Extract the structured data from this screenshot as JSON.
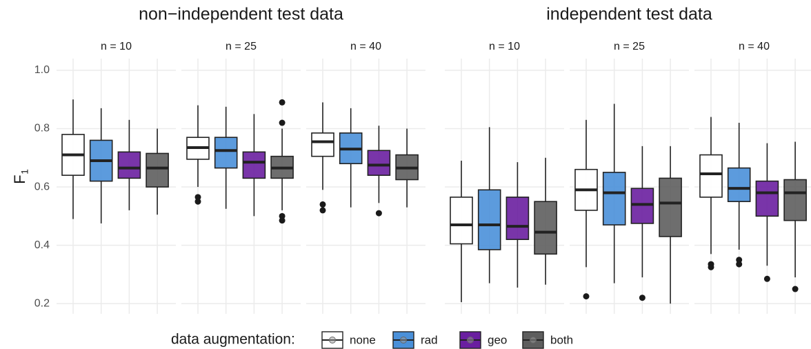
{
  "chart_data": {
    "type": "box",
    "ylabel": "F",
    "ylabel_subscript": "1",
    "ylim": [
      0.165,
      1.04
    ],
    "yticks": [
      0.2,
      0.4,
      0.6,
      0.8,
      {
        "value": 1,
        "label": "1.0"
      }
    ],
    "grid": true,
    "legend": {
      "title": "data augmentation:",
      "position": "bottom"
    },
    "series": [
      {
        "name": "none",
        "color": "#ffffff"
      },
      {
        "name": "rad",
        "color": "#4a90d9"
      },
      {
        "name": "geo",
        "color": "#6a1fa0"
      },
      {
        "name": "both",
        "color": "#5e5e5e"
      }
    ],
    "groups": [
      {
        "title": "non−independent test data",
        "panels": [
          {
            "title": "n = 10",
            "boxes": [
              {
                "low": 0.49,
                "q1": 0.64,
                "median": 0.71,
                "q3": 0.78,
                "high": 0.9,
                "outliers": []
              },
              {
                "low": 0.475,
                "q1": 0.62,
                "median": 0.69,
                "q3": 0.76,
                "high": 0.87,
                "outliers": []
              },
              {
                "low": 0.52,
                "q1": 0.63,
                "median": 0.665,
                "q3": 0.72,
                "high": 0.83,
                "outliers": []
              },
              {
                "low": 0.505,
                "q1": 0.6,
                "median": 0.665,
                "q3": 0.715,
                "high": 0.8,
                "outliers": []
              }
            ]
          },
          {
            "title": "n = 25",
            "boxes": [
              {
                "low": 0.6,
                "q1": 0.695,
                "median": 0.735,
                "q3": 0.77,
                "high": 0.88,
                "outliers": [
                  0.565,
                  0.55
                ]
              },
              {
                "low": 0.525,
                "q1": 0.665,
                "median": 0.725,
                "q3": 0.77,
                "high": 0.875,
                "outliers": []
              },
              {
                "low": 0.5,
                "q1": 0.63,
                "median": 0.685,
                "q3": 0.72,
                "high": 0.85,
                "outliers": []
              },
              {
                "low": 0.52,
                "q1": 0.63,
                "median": 0.665,
                "q3": 0.705,
                "high": 0.8,
                "outliers": [
                  0.89,
                  0.82,
                  0.5,
                  0.485
                ]
              }
            ]
          },
          {
            "title": "n = 40",
            "boxes": [
              {
                "low": 0.59,
                "q1": 0.705,
                "median": 0.755,
                "q3": 0.785,
                "high": 0.89,
                "outliers": [
                  0.54,
                  0.52
                ]
              },
              {
                "low": 0.53,
                "q1": 0.68,
                "median": 0.73,
                "q3": 0.785,
                "high": 0.87,
                "outliers": []
              },
              {
                "low": 0.545,
                "q1": 0.64,
                "median": 0.675,
                "q3": 0.725,
                "high": 0.81,
                "outliers": [
                  0.51
                ]
              },
              {
                "low": 0.53,
                "q1": 0.625,
                "median": 0.665,
                "q3": 0.71,
                "high": 0.8,
                "outliers": []
              }
            ]
          }
        ]
      },
      {
        "title": "independent test data",
        "panels": [
          {
            "title": "n = 10",
            "boxes": [
              {
                "low": 0.205,
                "q1": 0.405,
                "median": 0.47,
                "q3": 0.565,
                "high": 0.69,
                "outliers": []
              },
              {
                "low": 0.27,
                "q1": 0.385,
                "median": 0.47,
                "q3": 0.59,
                "high": 0.805,
                "outliers": []
              },
              {
                "low": 0.255,
                "q1": 0.42,
                "median": 0.465,
                "q3": 0.565,
                "high": 0.685,
                "outliers": []
              },
              {
                "low": 0.265,
                "q1": 0.37,
                "median": 0.445,
                "q3": 0.55,
                "high": 0.7,
                "outliers": []
              }
            ]
          },
          {
            "title": "n = 25",
            "boxes": [
              {
                "low": 0.325,
                "q1": 0.52,
                "median": 0.59,
                "q3": 0.66,
                "high": 0.83,
                "outliers": [
                  0.225
                ]
              },
              {
                "low": 0.27,
                "q1": 0.47,
                "median": 0.58,
                "q3": 0.65,
                "high": 0.885,
                "outliers": []
              },
              {
                "low": 0.29,
                "q1": 0.475,
                "median": 0.54,
                "q3": 0.595,
                "high": 0.74,
                "outliers": [
                  0.22
                ]
              },
              {
                "low": 0.2,
                "q1": 0.43,
                "median": 0.545,
                "q3": 0.63,
                "high": 0.74,
                "outliers": []
              }
            ]
          },
          {
            "title": "n = 40",
            "boxes": [
              {
                "low": 0.37,
                "q1": 0.565,
                "median": 0.645,
                "q3": 0.71,
                "high": 0.84,
                "outliers": [
                  0.335,
                  0.325
                ]
              },
              {
                "low": 0.385,
                "q1": 0.55,
                "median": 0.595,
                "q3": 0.665,
                "high": 0.82,
                "outliers": [
                  0.35,
                  0.335
                ]
              },
              {
                "low": 0.33,
                "q1": 0.5,
                "median": 0.58,
                "q3": 0.62,
                "high": 0.75,
                "outliers": [
                  0.285
                ]
              },
              {
                "low": 0.29,
                "q1": 0.485,
                "median": 0.58,
                "q3": 0.625,
                "high": 0.755,
                "outliers": [
                  0.25
                ]
              }
            ]
          }
        ]
      }
    ]
  }
}
